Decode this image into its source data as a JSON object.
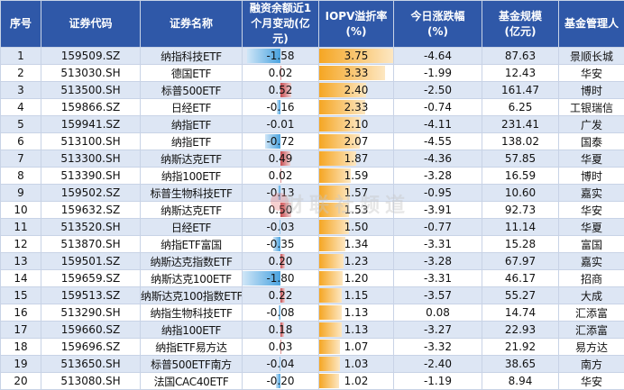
{
  "headers": {
    "seq": "序号",
    "code": "证券代码",
    "name": "证券名称",
    "fin": "融资余额近1个月变动(亿元)",
    "iopv": "IOPV溢折率(%)",
    "chg": "今日涨跌幅(%)",
    "scale": "基金规模(亿元)",
    "mgr": "基金管理人"
  },
  "rows": [
    {
      "seq": "1",
      "code": "159509.SZ",
      "name": "纳指科技ETF",
      "fin": "-1.58",
      "fin_value": -1.58,
      "iopv": "3.75",
      "iopv_value": 3.75,
      "chg": "-4.64",
      "scale": "87.63",
      "mgr": "景顺长城"
    },
    {
      "seq": "2",
      "code": "513030.SH",
      "name": "德国ETF",
      "fin": "0.02",
      "fin_value": 0.02,
      "iopv": "3.33",
      "iopv_value": 3.33,
      "chg": "-1.99",
      "scale": "12.43",
      "mgr": "华安"
    },
    {
      "seq": "3",
      "code": "513500.SH",
      "name": "标普500ETF",
      "fin": "0.52",
      "fin_value": 0.52,
      "iopv": "2.40",
      "iopv_value": 2.4,
      "chg": "-2.50",
      "scale": "161.47",
      "mgr": "博时"
    },
    {
      "seq": "4",
      "code": "159866.SZ",
      "name": "日经ETF",
      "fin": "-0.16",
      "fin_value": -0.16,
      "iopv": "2.33",
      "iopv_value": 2.33,
      "chg": "-0.74",
      "scale": "6.25",
      "mgr": "工银瑞信"
    },
    {
      "seq": "5",
      "code": "159941.SZ",
      "name": "纳指ETF",
      "fin": "-0.01",
      "fin_value": -0.01,
      "iopv": "2.10",
      "iopv_value": 2.1,
      "chg": "-4.11",
      "scale": "231.41",
      "mgr": "广发"
    },
    {
      "seq": "6",
      "code": "513100.SH",
      "name": "纳指ETF",
      "fin": "-0.72",
      "fin_value": -0.72,
      "iopv": "2.07",
      "iopv_value": 2.07,
      "chg": "-4.55",
      "scale": "138.02",
      "mgr": "国泰"
    },
    {
      "seq": "7",
      "code": "513300.SH",
      "name": "纳斯达克ETF",
      "fin": "0.49",
      "fin_value": 0.49,
      "iopv": "1.87",
      "iopv_value": 1.87,
      "chg": "-4.36",
      "scale": "57.85",
      "mgr": "华夏"
    },
    {
      "seq": "8",
      "code": "513390.SH",
      "name": "纳指100ETF",
      "fin": "0.02",
      "fin_value": 0.02,
      "iopv": "1.59",
      "iopv_value": 1.59,
      "chg": "-3.28",
      "scale": "16.59",
      "mgr": "博时"
    },
    {
      "seq": "9",
      "code": "159502.SZ",
      "name": "标普生物科技ETF",
      "fin": "-0.13",
      "fin_value": -0.13,
      "iopv": "1.57",
      "iopv_value": 1.57,
      "chg": "-0.95",
      "scale": "10.60",
      "mgr": "嘉实"
    },
    {
      "seq": "10",
      "code": "159632.SZ",
      "name": "纳斯达克ETF",
      "fin": "0.50",
      "fin_value": 0.5,
      "iopv": "1.53",
      "iopv_value": 1.53,
      "chg": "-3.91",
      "scale": "92.73",
      "mgr": "华安"
    },
    {
      "seq": "11",
      "code": "513520.SH",
      "name": "日经ETF",
      "fin": "-0.03",
      "fin_value": -0.03,
      "iopv": "1.50",
      "iopv_value": 1.5,
      "chg": "-0.77",
      "scale": "11.14",
      "mgr": "华夏"
    },
    {
      "seq": "12",
      "code": "513870.SH",
      "name": "纳指ETF富国",
      "fin": "-0.35",
      "fin_value": -0.35,
      "iopv": "1.34",
      "iopv_value": 1.34,
      "chg": "-3.31",
      "scale": "15.28",
      "mgr": "富国"
    },
    {
      "seq": "13",
      "code": "159501.SZ",
      "name": "纳斯达克指数ETF",
      "fin": "0.20",
      "fin_value": 0.2,
      "iopv": "1.23",
      "iopv_value": 1.23,
      "chg": "-3.28",
      "scale": "67.97",
      "mgr": "嘉实"
    },
    {
      "seq": "14",
      "code": "159659.SZ",
      "name": "纳斯达克100ETF",
      "fin": "-1.80",
      "fin_value": -1.8,
      "iopv": "1.20",
      "iopv_value": 1.2,
      "chg": "-3.31",
      "scale": "46.17",
      "mgr": "招商"
    },
    {
      "seq": "15",
      "code": "159513.SZ",
      "name": "纳斯达克100指数ETF",
      "fin": "0.22",
      "fin_value": 0.22,
      "iopv": "1.15",
      "iopv_value": 1.15,
      "chg": "-3.57",
      "scale": "55.27",
      "mgr": "大成"
    },
    {
      "seq": "16",
      "code": "513290.SH",
      "name": "纳指生物科技ETF",
      "fin": "-0.08",
      "fin_value": -0.08,
      "iopv": "1.13",
      "iopv_value": 1.13,
      "chg": "0.08",
      "scale": "14.74",
      "mgr": "汇添富"
    },
    {
      "seq": "17",
      "code": "159660.SZ",
      "name": "纳指100ETF",
      "fin": "0.18",
      "fin_value": 0.18,
      "iopv": "1.13",
      "iopv_value": 1.13,
      "chg": "-3.27",
      "scale": "22.93",
      "mgr": "汇添富"
    },
    {
      "seq": "18",
      "code": "159696.SZ",
      "name": "纳指ETF易方达",
      "fin": "0.03",
      "fin_value": 0.03,
      "iopv": "1.07",
      "iopv_value": 1.07,
      "chg": "-3.32",
      "scale": "21.92",
      "mgr": "易方达"
    },
    {
      "seq": "19",
      "code": "513650.SH",
      "name": "标普500ETF南方",
      "fin": "-0.04",
      "fin_value": -0.04,
      "iopv": "1.03",
      "iopv_value": 1.03,
      "chg": "-2.40",
      "scale": "38.65",
      "mgr": "南方"
    },
    {
      "seq": "20",
      "code": "513080.SH",
      "name": "法国CAC40ETF",
      "fin": "-0.20",
      "fin_value": -0.2,
      "iopv": "1.02",
      "iopv_value": 1.02,
      "chg": "-1.19",
      "scale": "8.94",
      "mgr": "华安"
    }
  ],
  "watermark": "财联社频道",
  "colors": {
    "header_bg": "#2f58a8",
    "row_alt": "#dde6f4",
    "neg_bar": "#4aa3e0",
    "pos_bar": "#c74b4f",
    "iopv_bar": "#f5a623"
  }
}
